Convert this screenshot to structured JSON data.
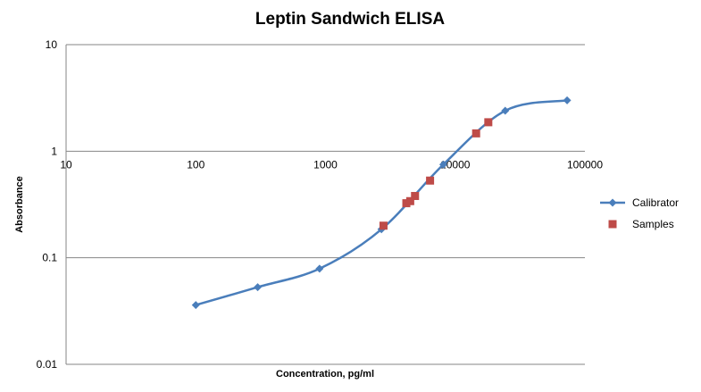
{
  "chart_data": {
    "type": "scatter",
    "title": "Leptin Sandwich ELISA",
    "xlabel": "Concentration, pg/ml",
    "ylabel": "Absorbance",
    "x_scale": "log",
    "y_scale": "log",
    "xlim": [
      10,
      100000
    ],
    "ylim": [
      0.01,
      10
    ],
    "x_ticks": [
      "10",
      "100",
      "1000",
      "10000",
      "100000"
    ],
    "y_ticks": [
      "0.01",
      "0.1",
      "1",
      "10"
    ],
    "grid": "horizontal major gridlines",
    "legend_position": "right",
    "series": [
      {
        "name": "Calibrator",
        "style": "smoothed line with diamond markers",
        "color": "#4a7ebb",
        "x": [
          100,
          300,
          900,
          2700,
          8100,
          24300,
          72900
        ],
        "y": [
          0.036,
          0.053,
          0.079,
          0.185,
          0.75,
          2.4,
          3.0
        ]
      },
      {
        "name": "Samples",
        "style": "square markers",
        "color": "#be4b48",
        "x": [
          2800,
          4200,
          4500,
          4900,
          6400,
          14500,
          18000
        ],
        "y": [
          0.2,
          0.325,
          0.34,
          0.38,
          0.53,
          1.47,
          1.87
        ]
      }
    ]
  }
}
